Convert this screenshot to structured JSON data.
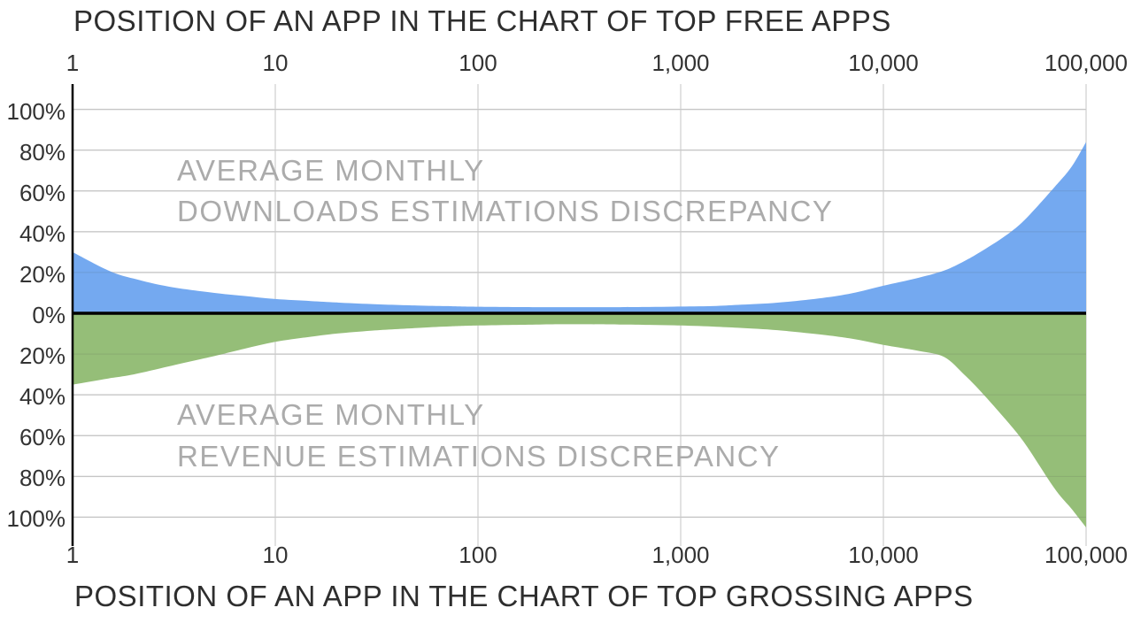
{
  "chart_data": {
    "type": "area",
    "x_axis": {
      "scale": "log",
      "min": 1,
      "max": 100000,
      "title_top": "POSITION OF AN APP IN THE CHART OF TOP FREE APPS",
      "title_bottom": "POSITION OF AN APP IN THE CHART OF TOP GROSSING APPS"
    },
    "y_axis": {
      "unit": "percent",
      "range": [
        -110,
        109
      ],
      "gridline_step": 20,
      "note": "mirrored axis: top half positive discrepancy, bottom half shown as negative"
    },
    "x_ticks": [
      {
        "label": "1",
        "pos": 1
      },
      {
        "label": "10",
        "pos": 10
      },
      {
        "label": "100",
        "pos": 100
      },
      {
        "label": "1,000",
        "pos": 1000
      },
      {
        "label": "10,000",
        "pos": 10000
      },
      {
        "label": "100,000",
        "pos": 100000
      }
    ],
    "y_ticks": [
      {
        "label": "100%",
        "value": 100
      },
      {
        "label": "80%",
        "value": 80
      },
      {
        "label": "60%",
        "value": 60
      },
      {
        "label": "40%",
        "value": 40
      },
      {
        "label": "20%",
        "value": 20
      },
      {
        "label": "0%",
        "value": 0
      },
      {
        "label": "20%",
        "value": -20
      },
      {
        "label": "40%",
        "value": -40
      },
      {
        "label": "60%",
        "value": -60
      },
      {
        "label": "80%",
        "value": -80
      },
      {
        "label": "100%",
        "value": -100
      }
    ],
    "series": [
      {
        "id": "downloads",
        "label_line1": "AVERAGE MONTHLY",
        "label_line2": "DOWNLOADS ESTIMATIONS DISCREPANCY",
        "color": "#74a9f0",
        "x": [
          1,
          1.5,
          2,
          3,
          5,
          7,
          10,
          15,
          20,
          30,
          50,
          70,
          100,
          200,
          300,
          500,
          700,
          1000,
          1500,
          2000,
          3000,
          5000,
          7000,
          10000,
          15000,
          20000,
          25000,
          30000,
          40000,
          50000,
          70000,
          85000,
          100000
        ],
        "y": [
          30,
          21,
          17,
          13,
          10,
          8.5,
          7,
          6,
          5.3,
          4.5,
          3.8,
          3.5,
          3.2,
          3,
          3,
          3,
          3.1,
          3.3,
          3.6,
          4.2,
          5.2,
          7.5,
          9.8,
          13.5,
          17.5,
          21,
          25.5,
          30,
          38,
          46,
          62,
          72,
          84
        ]
      },
      {
        "id": "revenue",
        "label_line1": "AVERAGE MONTHLY",
        "label_line2": "REVENUE ESTIMATIONS DISCREPANCY",
        "color": "#95be78",
        "x": [
          1,
          1.5,
          2,
          3,
          5,
          7,
          10,
          15,
          20,
          30,
          50,
          70,
          100,
          200,
          300,
          500,
          700,
          1000,
          1500,
          2000,
          3000,
          5000,
          7000,
          10000,
          15000,
          20000,
          25000,
          30000,
          40000,
          50000,
          70000,
          85000,
          100000
        ],
        "y": [
          -35,
          -32,
          -30,
          -26,
          -21,
          -17.5,
          -14,
          -11.5,
          -10,
          -8.5,
          -7.2,
          -6.5,
          -6,
          -5.5,
          -5.4,
          -5.5,
          -5.7,
          -6,
          -6.6,
          -7.2,
          -8.3,
          -10.5,
          -12.5,
          -15.5,
          -18.5,
          -21.5,
          -30,
          -38,
          -52,
          -64,
          -86,
          -96,
          -105
        ]
      }
    ],
    "colors": {
      "downloads_fill": "#74a9f0",
      "revenue_fill": "#95be78",
      "gridline": "#d9d9d9",
      "axis_line": "#000000",
      "tick_text": "#333333",
      "area_label_text": "#ababab"
    }
  }
}
